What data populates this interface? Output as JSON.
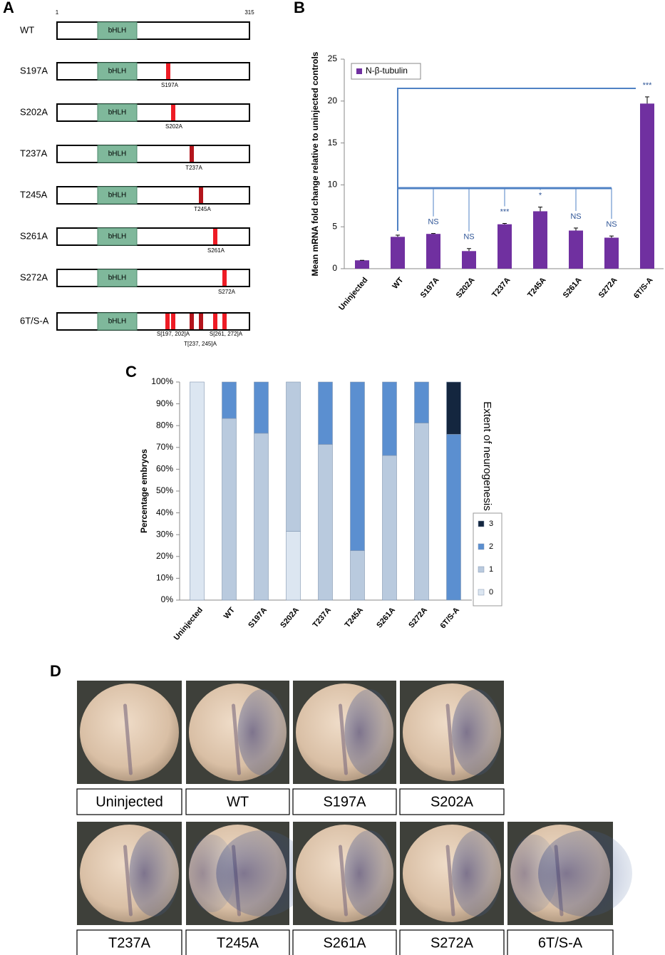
{
  "panel_labels": [
    "A",
    "B",
    "C",
    "D"
  ],
  "constructs": {
    "start": "1",
    "end": "315",
    "domain": "bHLH",
    "rows": [
      {
        "name": "WT"
      },
      {
        "name": "S197A",
        "sites": [
          "S197A"
        ]
      },
      {
        "name": "S202A",
        "sites": [
          "S202A"
        ]
      },
      {
        "name": "T237A",
        "sites": [
          "T237A"
        ]
      },
      {
        "name": "T245A",
        "sites": [
          "T245A"
        ]
      },
      {
        "name": "S261A",
        "sites": [
          "S261A"
        ]
      },
      {
        "name": "S272A",
        "sites": [
          "S272A"
        ]
      },
      {
        "name": "6T/S-A",
        "sites": [
          "S[197, 202]A",
          "T[237, 245]A",
          "S[261, 272]A"
        ]
      }
    ]
  },
  "chart_data": [
    {
      "type": "bar",
      "y_label": "Mean mRNA fold change relative to uninjected controls",
      "categories": [
        "Uninjected",
        "WT",
        "S197A",
        "S202A",
        "T237A",
        "T245A",
        "S261A",
        "S272A",
        "6T/S-A"
      ],
      "series": [
        {
          "name": "N-β-tubulin",
          "color": "#7030a0",
          "values": [
            1.0,
            3.8,
            4.15,
            2.1,
            5.3,
            6.85,
            4.55,
            3.7,
            19.7
          ]
        }
      ],
      "errors": [
        0,
        0.2,
        0.05,
        0.3,
        0.1,
        0.5,
        0.3,
        0.2,
        0.8
      ],
      "significance": [
        null,
        null,
        "NS",
        "NS",
        "***",
        "*",
        "NS",
        "NS",
        "***"
      ],
      "ylim": [
        0,
        25
      ],
      "yticks": [
        0,
        5,
        10,
        15,
        20,
        25
      ],
      "legend": "top-left"
    },
    {
      "type": "stacked-bar",
      "y_label": "Percentage embryos",
      "legend_title": "Extent of neurogenesis",
      "categories": [
        "Uninjected",
        "WT",
        "S197A",
        "S202A",
        "T237A",
        "T245A",
        "S261A",
        "S272A",
        "6T/S-A"
      ],
      "series": [
        {
          "name": "0",
          "color": "#dce6f1",
          "values": [
            100,
            0,
            0,
            31.5,
            0,
            0,
            0,
            0,
            0
          ]
        },
        {
          "name": "1",
          "color": "#b9cade",
          "values": [
            0,
            83.3,
            76.5,
            68.5,
            71.4,
            22.7,
            66.3,
            81.2,
            0
          ]
        },
        {
          "name": "2",
          "color": "#5b8fd0",
          "values": [
            0,
            16.7,
            23.5,
            0,
            28.6,
            77.3,
            33.7,
            18.8,
            76
          ]
        },
        {
          "name": "3",
          "color": "#14263f",
          "values": [
            0,
            0,
            0,
            0,
            0,
            0,
            0,
            0,
            24
          ]
        }
      ],
      "ylim": [
        0,
        100
      ],
      "yticks": [
        {
          "value": 0,
          "label": "0%"
        },
        {
          "value": 10,
          "label": "10%"
        },
        {
          "value": 20,
          "label": "20%"
        },
        {
          "value": 30,
          "label": "30%"
        },
        {
          "value": 40,
          "label": "40%"
        },
        {
          "value": 50,
          "label": "50%"
        },
        {
          "value": 60,
          "label": "60%"
        },
        {
          "value": 70,
          "label": "70%"
        },
        {
          "value": 80,
          "label": "80%"
        },
        {
          "value": 90,
          "label": "90%"
        },
        {
          "value": 100,
          "label": "100%"
        }
      ],
      "legend": "right"
    }
  ],
  "embryos": {
    "labels": [
      "Uninjected",
      "WT",
      "S197A",
      "S202A",
      "T237A",
      "T245A",
      "S261A",
      "S272A",
      "6T/S-A"
    ]
  }
}
